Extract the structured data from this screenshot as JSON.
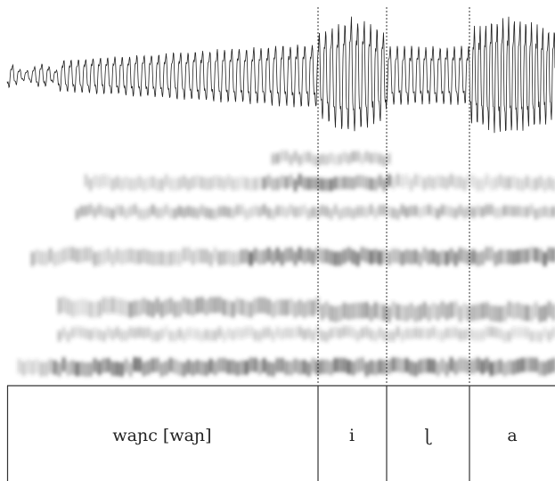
{
  "segments": [
    {
      "label": "waɲc [waɲ]"
    },
    {
      "label": "i"
    },
    {
      "label": "ɭ"
    },
    {
      "label": "a"
    }
  ]
}
